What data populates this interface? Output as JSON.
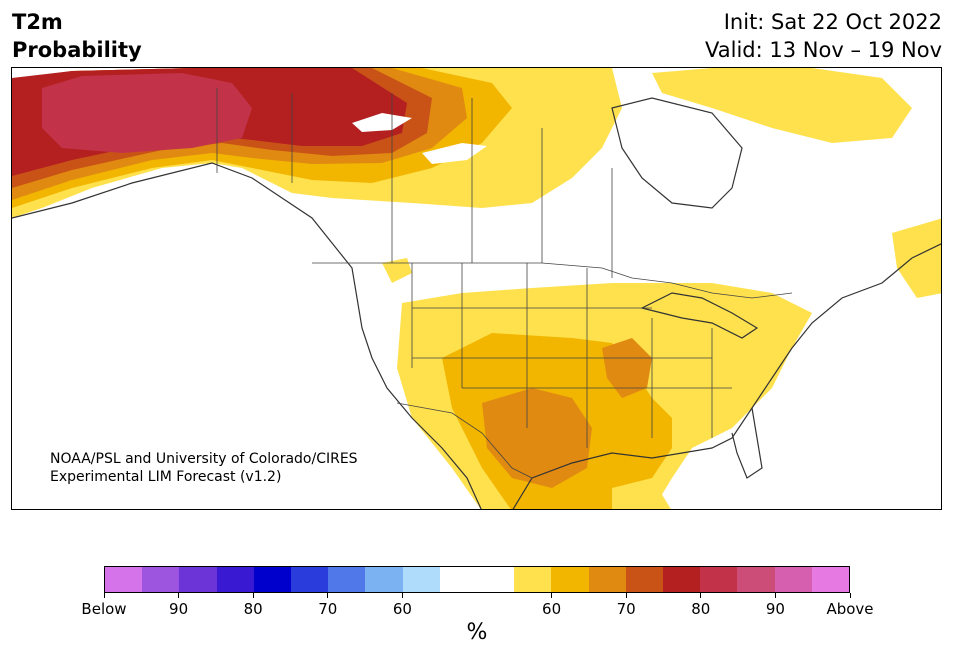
{
  "header": {
    "title_line1": "T2m",
    "title_line2": "Probability",
    "init": "Init: Sat 22 Oct 2022",
    "valid": "Valid: 13 Nov – 19 Nov"
  },
  "map": {
    "credit_line1": "NOAA/PSL and University of Colorado/CIRES",
    "credit_line2": "Experimental LIM Forecast (v1.2)",
    "variable": "2-meter temperature probability"
  },
  "colorbar": {
    "unit": "%",
    "colors": [
      "#d573ea",
      "#9d55e0",
      "#6c33d6",
      "#3a19d2",
      "#0000cc",
      "#2a3ddc",
      "#5078e8",
      "#7ab2f2",
      "#b0dcfb",
      "#ffffff",
      "#ffffff",
      "#fee14d",
      "#f2b600",
      "#e08a12",
      "#c95317",
      "#b41f20",
      "#c23349",
      "#cd4d79",
      "#d75fb0",
      "#e67ae2"
    ],
    "ticks": [
      {
        "label": "Below",
        "idx": 0
      },
      {
        "label": "90",
        "idx": 2
      },
      {
        "label": "80",
        "idx": 4
      },
      {
        "label": "70",
        "idx": 6
      },
      {
        "label": "60",
        "idx": 8
      },
      {
        "label": "60",
        "idx": 12
      },
      {
        "label": "70",
        "idx": 14
      },
      {
        "label": "80",
        "idx": 16
      },
      {
        "label": "90",
        "idx": 18
      },
      {
        "label": "Above",
        "idx": 20
      }
    ]
  }
}
